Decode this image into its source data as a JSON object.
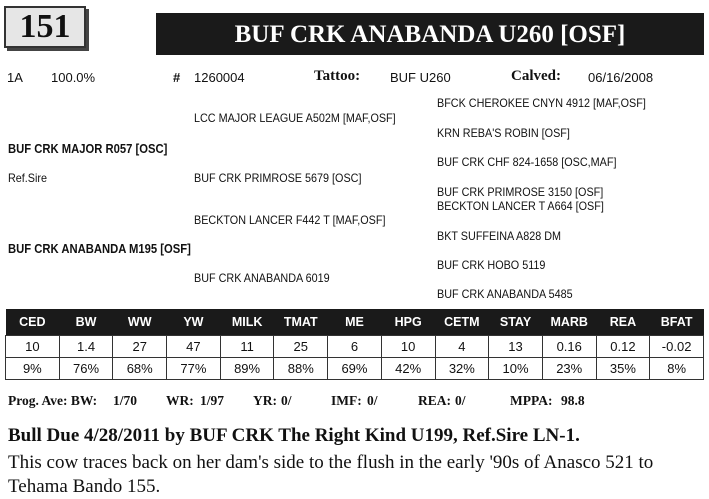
{
  "header": {
    "lot_number": "151",
    "animal_name": "BUF CRK ANABANDA U260 [OSF]"
  },
  "info": {
    "breed_code": "1A",
    "percent": "100.0%",
    "reg_prefix": "#",
    "reg_number": "1260004",
    "tattoo_label": "Tattoo:",
    "tattoo_value": "BUF U260",
    "calved_label": "Calved:",
    "calved_value": "06/16/2008"
  },
  "pedigree": {
    "sire": "BUF CRK MAJOR R057 [OSC]",
    "sire_note": "Ref.Sire",
    "dam": "BUF CRK ANABANDA M195 [OSF]",
    "ss": "LCC MAJOR LEAGUE A502M [MAF,OSF]",
    "sd": "BUF CRK PRIMROSE 5679  [OSC]",
    "ds": "BECKTON LANCER F442 T [MAF,OSF]",
    "dd": "BUF CRK ANABANDA 6019",
    "sss": "BFCK CHEROKEE CNYN 4912 [MAF,OSF]",
    "ssd": "KRN REBA'S ROBIN [OSF]",
    "sds": "BUF CRK CHF 824-1658 [OSC,MAF]",
    "sdd": "BUF CRK PRIMROSE 3150  [OSF]",
    "dss": "BECKTON LANCER T A664  [OSF]",
    "dsd": "BKT SUFFEINA A828 DM",
    "dds": "BUF CRK HOBO 5119",
    "ddd": "BUF CRK ANABANDA 5485"
  },
  "epd": {
    "headers": [
      "CED",
      "BW",
      "WW",
      "YW",
      "MILK",
      "TMAT",
      "ME",
      "HPG",
      "CETM",
      "STAY",
      "MARB",
      "REA",
      "BFAT"
    ],
    "values": [
      "10",
      "1.4",
      "27",
      "47",
      "11",
      "25",
      "6",
      "10",
      "4",
      "13",
      "0.16",
      "0.12",
      "-0.02"
    ],
    "percentiles": [
      "9%",
      "76%",
      "68%",
      "77%",
      "89%",
      "88%",
      "69%",
      "42%",
      "32%",
      "10%",
      "23%",
      "35%",
      "8%"
    ]
  },
  "progeny": {
    "label": "Prog. Ave: BW:",
    "bw": "1/70",
    "wr_label": "WR:",
    "wr": "1/97",
    "yr_label": "YR:",
    "yr": "0/",
    "imf_label": "IMF:",
    "imf": "0/",
    "rea_label": "REA:",
    "rea": "0/",
    "mppa_label": "MPPA:",
    "mppa": "98.8"
  },
  "footer": {
    "due_line": "Bull Due 4/28/2011 by BUF CRK The Right Kind U199, Ref.Sire LN-1.",
    "note": "This cow traces back on her dam's side to the flush in the early '90s of Anasco 521 to Tehama Bando 155."
  }
}
